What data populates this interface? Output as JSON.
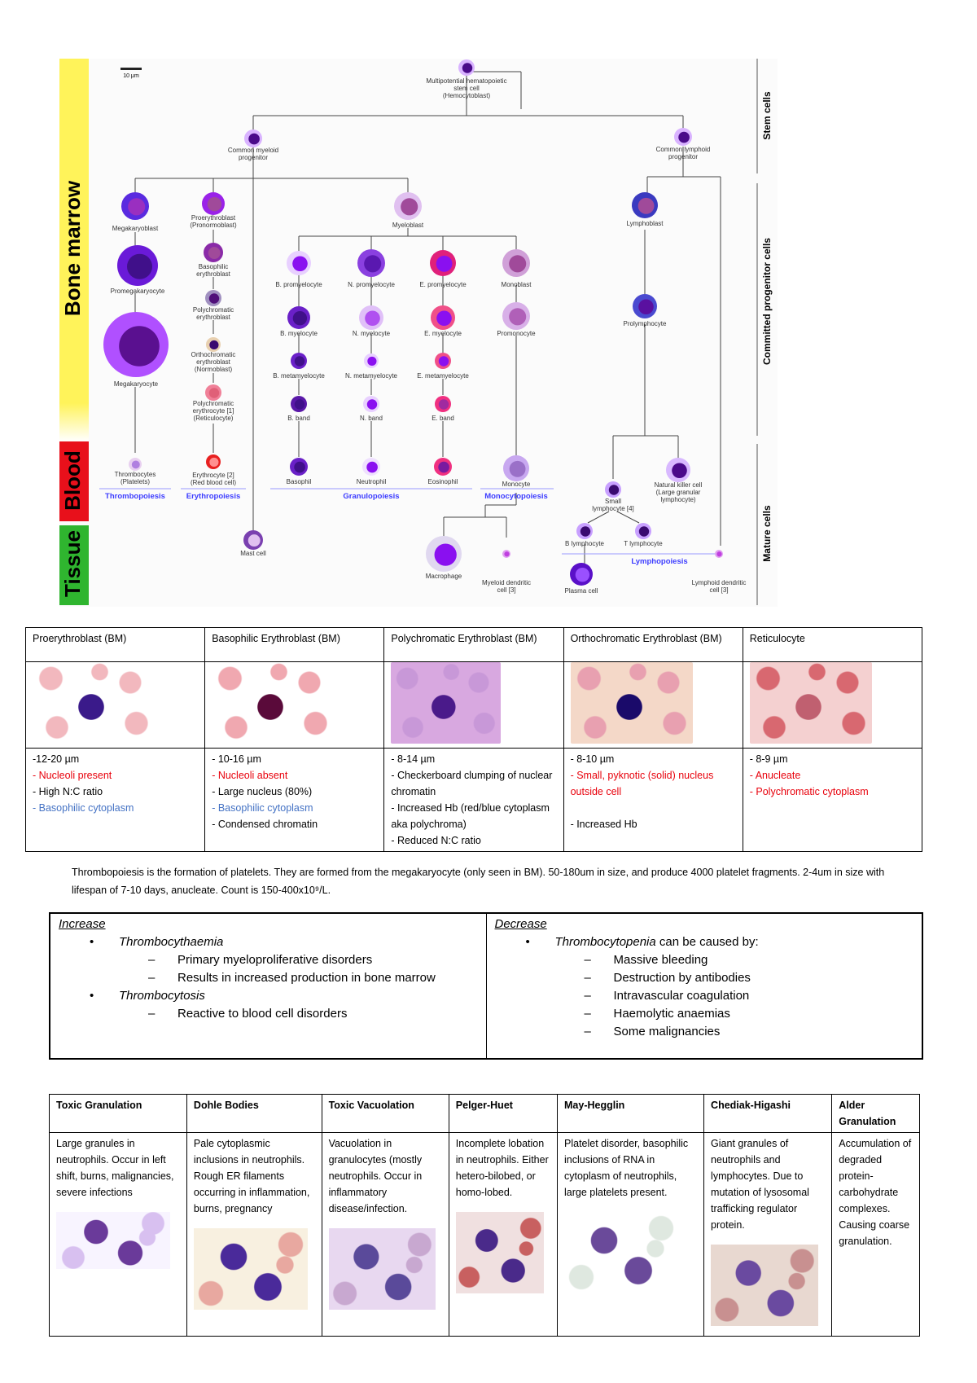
{
  "diagram": {
    "scale_bar": "10 μm",
    "zones": [
      "Bone marrow",
      "Blood",
      "Tissue"
    ],
    "stages": [
      "Stem cells",
      "Committed progenitor cells",
      "Mature cells"
    ],
    "nodes": [
      [
        "Multipotential hematopoietic",
        "stem cell",
        "(Hemocytoblast)"
      ],
      [
        "Common myeloid",
        "progenitor"
      ],
      [
        "Common lymphoid",
        "progenitor"
      ],
      [
        "Megakaryoblast"
      ],
      [
        "Proerythroblast",
        "(Pronormoblast)"
      ],
      [
        "Myeloblast"
      ],
      [
        "Lymphoblast"
      ],
      [
        "Promegakaryocyte"
      ],
      [
        "Basophilic",
        "erythroblast"
      ],
      [
        "B. promyelocyte"
      ],
      [
        "N. promyelocyte"
      ],
      [
        "E. promyelocyte"
      ],
      [
        "Monoblast"
      ],
      [
        "Polychromatic",
        "erythroblast"
      ],
      [
        "B. myelocyte"
      ],
      [
        "N. myelocyte"
      ],
      [
        "E. myelocyte"
      ],
      [
        "Promonocyte"
      ],
      [
        "Prolymphocyte"
      ],
      [
        "Megakaryocyte"
      ],
      [
        "Orthochromatic",
        "erythroblast",
        "(Normoblast)"
      ],
      [
        "B. metamyelocyte"
      ],
      [
        "N. metamyelocyte"
      ],
      [
        "E. metamyelocyte"
      ],
      [
        "Polychromatic",
        "erythrocyte [1]",
        "(Reticulocyte)"
      ],
      [
        "B. band"
      ],
      [
        "N. band"
      ],
      [
        "E. band"
      ],
      [
        "Thrombocytes",
        "(Platelets)"
      ],
      [
        "Erythrocyte [2]",
        "(Red blood cell)"
      ],
      [
        "Basophil"
      ],
      [
        "Neutrophil"
      ],
      [
        "Eosinophil"
      ],
      [
        "Monocyte"
      ],
      [
        "Natural killer cell",
        "(Large granular",
        "lymphocyte)"
      ],
      [
        "Small",
        "lymphocyte [4]"
      ],
      [
        "B lymphocyte"
      ],
      [
        "T lymphocyte"
      ],
      [
        "Mast cell"
      ],
      [
        "Macrophage"
      ],
      [
        "Myeloid dendritic",
        "cell [3]"
      ],
      [
        "Plasma cell"
      ],
      [
        "Lymphoid dendritic",
        "cell [3]"
      ]
    ],
    "processes": [
      "Thrombopoiesis",
      "Erythropoiesis",
      "Granulopoiesis",
      "Monocytopoiesis",
      "Lymphopoiesis"
    ],
    "colors": {
      "bone_marrow": "#fff35a",
      "blood": "#e8101b",
      "tissue": "#2fb52f",
      "process": "#3c3cff"
    }
  },
  "erythro_table": {
    "headers": [
      "Proerythroblast (BM)",
      "Basophilic Erythroblast (BM)",
      "Polychromatic Erythroblast (BM)",
      "Orthochromatic Erythroblast (BM)",
      "Reticulocyte"
    ],
    "cols": [
      [
        [
          "-12-20 µm",
          ""
        ],
        [
          "- Nucleoli present",
          "red"
        ],
        [
          "- High N:C ratio",
          ""
        ],
        [
          "- Basophilic cytoplasm",
          "blue"
        ]
      ],
      [
        [
          "- 10-16 µm",
          ""
        ],
        [
          "- Nucleoli absent",
          "red"
        ],
        [
          "- Large nucleus (80%)",
          ""
        ],
        [
          "- Basophilic cytoplasm",
          "blue"
        ],
        [
          "- Condensed chromatin",
          ""
        ]
      ],
      [
        [
          "- 8-14 µm",
          ""
        ],
        [
          "- Checkerboard clumping of nuclear chromatin",
          ""
        ],
        [
          "- Increased Hb (red/blue cytoplasm aka polychroma)",
          ""
        ],
        [
          "- Reduced N:C ratio",
          ""
        ]
      ],
      [
        [
          "- 8-10 µm",
          ""
        ],
        [
          "- Small, pyknotic (solid) nucleus outside cell",
          "red"
        ],
        [
          "",
          ""
        ],
        [
          "- Increased Hb",
          ""
        ]
      ],
      [
        [
          "- 8-9 µm",
          ""
        ],
        [
          "- Anucleate",
          "red"
        ],
        [
          "- Polychromatic cytoplasm",
          "red"
        ]
      ]
    ]
  },
  "paragraph": "Thrombopoiesis is the formation of platelets. They are formed from the megakaryocyte (only seen in BM).  50-180um in size, and produce 4000 platelet fragments. 2-4um in size with lifespan of 7-10 days, anucleate. Count is 150-400x10⁹/L.",
  "increase": {
    "title": "Increase",
    "items": [
      {
        "label": "Thrombocythaemia",
        "sub": [
          "Primary myeloproliferative disorders",
          "Results in increased production in bone marrow"
        ]
      },
      {
        "label": "Thrombocytosis",
        "sub": [
          "Reactive to blood cell disorders"
        ]
      }
    ]
  },
  "decrease": {
    "title": "Decrease",
    "items": [
      {
        "label": "Thrombocytopenia",
        "suffix": " can be caused by:",
        "sub": [
          "Massive bleeding",
          "Destruction by antibodies",
          "Intravascular coagulation",
          "Haemolytic anaemias",
          "Some malignancies"
        ]
      }
    ]
  },
  "anomaly_table": {
    "headers": [
      "Toxic Granulation",
      "Dohle Bodies",
      "Toxic Vacuolation",
      "Pelger-Huet",
      "May-Hegglin",
      "Chediak-Higashi",
      "Alder Granulation"
    ],
    "texts": [
      "Large granules in neutrophils. Occur in left shift, burns, malignancies, severe infections",
      "Pale cytoplasmic inclusions in neutrophils. Rough ER filaments occurring in inflammation, burns, pregnancy",
      "Vacuolation in granulocytes (mostly neutrophils. Occur in inflammatory disease/infection.",
      "Incomplete lobation in neutrophils. Either hetero-bilobed, or homo-lobed.",
      "Platelet disorder, basophilic inclusions of RNA in cytoplasm of neutrophils, large platelets present.",
      "Giant granules of neutrophils and lymphocytes. Due to mutation of lysosomal trafficking regulator protein.",
      "Accumulation of degraded protein-carbohydrate complexes. Causing coarse granulation."
    ]
  }
}
